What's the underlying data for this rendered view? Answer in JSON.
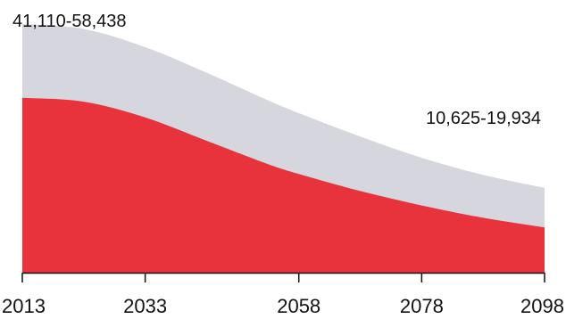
{
  "chart_data": {
    "type": "area",
    "stacked": false,
    "x": [
      2013,
      2023,
      2033,
      2043,
      2053,
      2058,
      2068,
      2078,
      2088,
      2098
    ],
    "xlim": [
      2013,
      2098
    ],
    "ylim": [
      0,
      62000
    ],
    "tick_labels": [
      "2013",
      "2033",
      "2058",
      "2078",
      "2098"
    ],
    "tick_values": [
      2013,
      2033,
      2058,
      2078,
      2098
    ],
    "grid": false,
    "legend": "none",
    "series": [
      {
        "values": [
          58438,
          57300,
          53000,
          47000,
          40500,
          37500,
          32000,
          27000,
          23000,
          19934
        ],
        "color": "#d5d6de"
      },
      {
        "values": [
          41110,
          40200,
          36500,
          31000,
          25500,
          23200,
          19200,
          15800,
          12900,
          10625
        ],
        "color": "#e8323c"
      }
    ],
    "annotations": [
      {
        "text": "41,110-58,438",
        "x": 2013
      },
      {
        "text": "10,625-19,934",
        "x": 2098
      }
    ]
  }
}
